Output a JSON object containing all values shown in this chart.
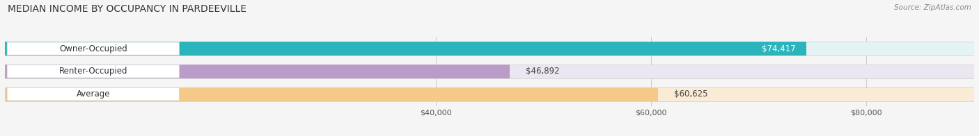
{
  "title": "MEDIAN INCOME BY OCCUPANCY IN PARDEEVILLE",
  "source": "Source: ZipAtlas.com",
  "categories": [
    "Owner-Occupied",
    "Renter-Occupied",
    "Average"
  ],
  "values": [
    74417,
    46892,
    60625
  ],
  "labels": [
    "$74,417",
    "$46,892",
    "$60,625"
  ],
  "bar_colors": [
    "#2ab5bc",
    "#b99dc8",
    "#f5c98a"
  ],
  "bar_bg_colors": [
    "#e4f4f5",
    "#ece6f0",
    "#faebd7"
  ],
  "label_value_colors": [
    "#ffffff",
    "#555555",
    "#555555"
  ],
  "xlim_min": 0,
  "xlim_max": 90000,
  "xticks": [
    40000,
    60000,
    80000
  ],
  "xticklabels": [
    "$40,000",
    "$60,000",
    "$80,000"
  ],
  "title_fontsize": 10,
  "label_fontsize": 8,
  "bar_label_fontsize": 8.5,
  "category_fontsize": 8.5,
  "source_fontsize": 7.5,
  "bar_height": 0.6,
  "background_color": "#f5f5f5"
}
